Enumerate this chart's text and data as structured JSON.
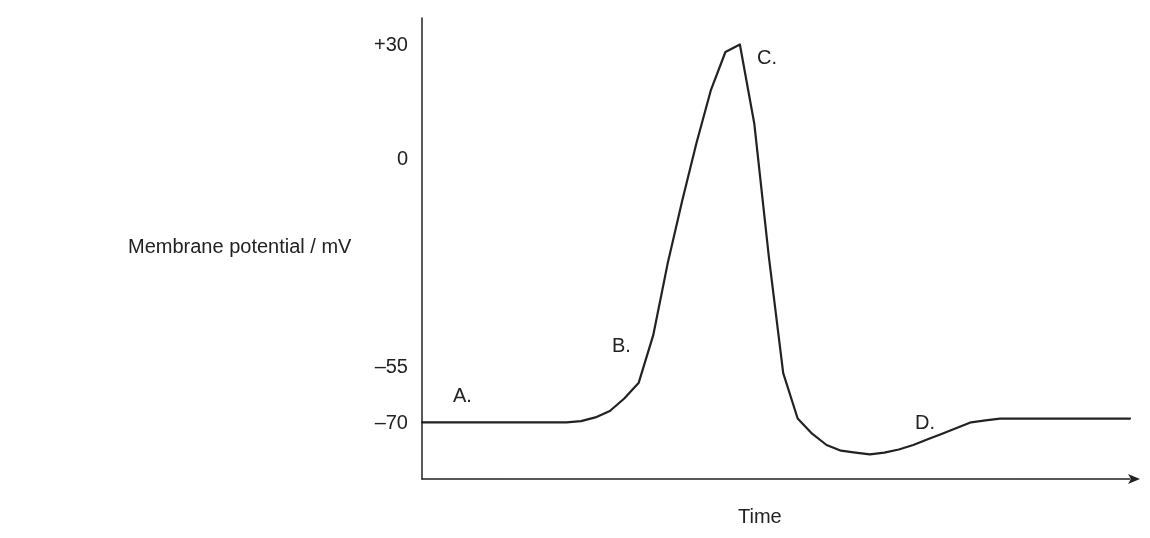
{
  "chart_data": {
    "type": "line",
    "xlabel": "Time",
    "ylabel": "Membrane potential / mV",
    "categories": [
      null,
      null,
      null,
      null,
      null,
      null,
      null,
      null,
      null,
      null,
      null,
      null,
      null,
      null,
      null,
      null,
      null,
      null,
      null,
      null,
      null,
      null,
      null,
      null,
      null,
      null,
      null,
      null,
      null,
      null,
      null,
      null,
      null,
      null,
      null,
      null,
      null,
      null,
      null,
      null,
      null,
      null,
      null,
      null,
      null,
      null,
      null,
      null,
      null,
      null
    ],
    "values": [
      -70,
      -70,
      -70,
      -70,
      -70,
      -70,
      -70,
      -70,
      -70,
      -70,
      -70,
      -69.7,
      -68.7,
      -67,
      -63.7,
      -59.5,
      -47,
      -28,
      -11.5,
      4,
      18,
      28,
      30,
      9,
      -26,
      -57,
      -69,
      -73,
      -76,
      -77.5,
      -78,
      -78.5,
      -78,
      -77.2,
      -76,
      -74.5,
      -73,
      -71.5,
      -70,
      -69.5,
      -69,
      -69,
      -69,
      -69,
      -69,
      -69,
      -69,
      -69,
      -69,
      -69
    ],
    "color": "#222222",
    "ylim": [
      -85,
      37
    ],
    "yticks": [
      {
        "value": 30,
        "label": "+30"
      },
      0,
      {
        "value": -55,
        "label": "–55"
      },
      {
        "value": -70,
        "label": "–70"
      }
    ],
    "tick_labels": "y",
    "grid": false,
    "marker": "none",
    "line_style": "solid",
    "annotations": [
      "A.",
      "B.",
      "C.",
      "D."
    ]
  }
}
